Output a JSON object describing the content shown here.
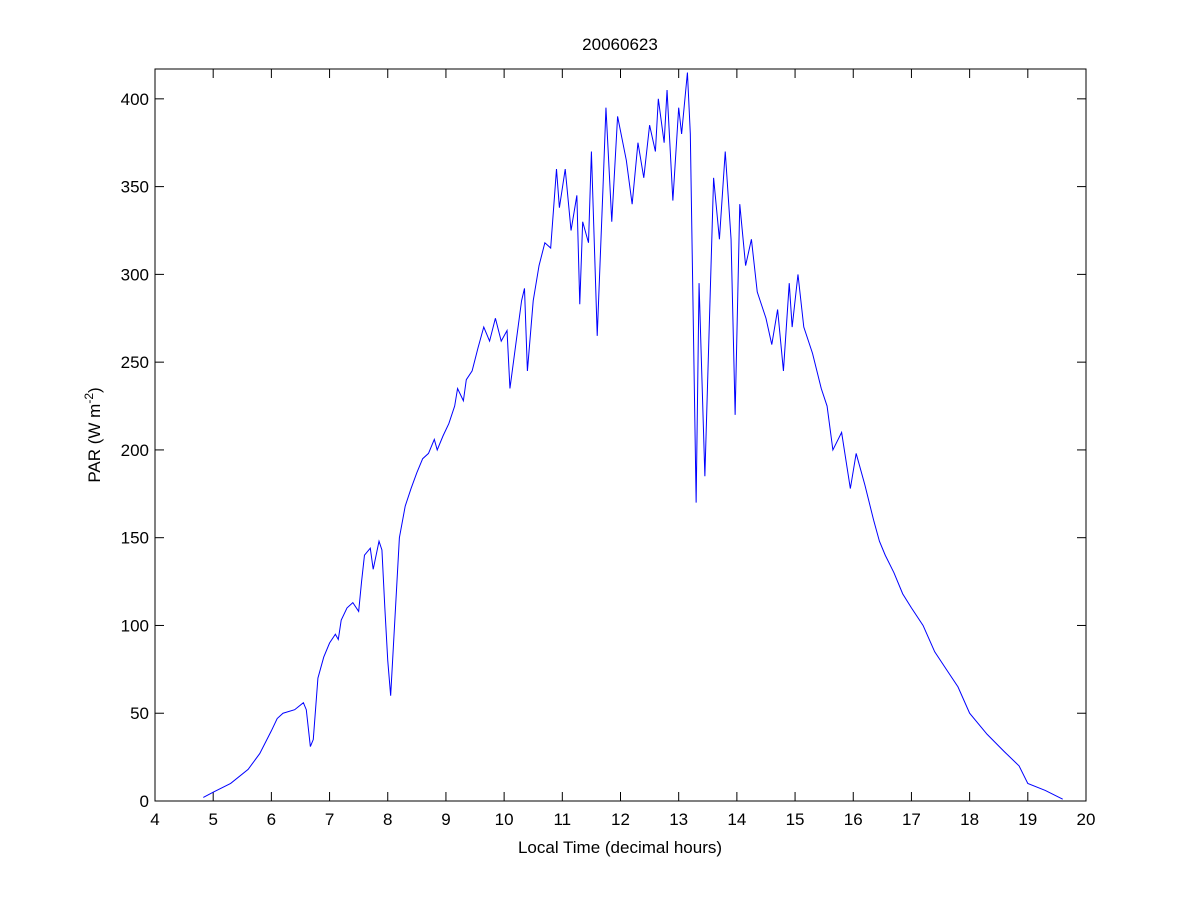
{
  "chart_data": {
    "type": "line",
    "title": "20060623",
    "xlabel": "Local Time (decimal hours)",
    "ylabel": [
      "PAR (W m",
      "-2",
      ")"
    ],
    "xlim": [
      4,
      20
    ],
    "ylim": [
      0,
      417
    ],
    "xticks": [
      4,
      5,
      6,
      7,
      8,
      9,
      10,
      11,
      12,
      13,
      14,
      15,
      16,
      17,
      18,
      19,
      20
    ],
    "yticks": [
      0,
      50,
      100,
      150,
      200,
      250,
      300,
      350,
      400
    ],
    "grid": false,
    "series": [
      {
        "color": "#0000ff",
        "x": [
          4.83,
          5.0,
          5.3,
          5.6,
          5.8,
          6.0,
          6.1,
          6.2,
          6.4,
          6.55,
          6.6,
          6.67,
          6.72,
          6.8,
          6.9,
          7.0,
          7.1,
          7.15,
          7.2,
          7.3,
          7.4,
          7.5,
          7.55,
          7.6,
          7.7,
          7.75,
          7.8,
          7.85,
          7.9,
          7.95,
          8.0,
          8.05,
          8.1,
          8.2,
          8.3,
          8.4,
          8.5,
          8.6,
          8.7,
          8.8,
          8.85,
          8.95,
          9.05,
          9.15,
          9.2,
          9.3,
          9.35,
          9.45,
          9.55,
          9.65,
          9.75,
          9.85,
          9.95,
          10.05,
          10.1,
          10.2,
          10.3,
          10.35,
          10.4,
          10.5,
          10.6,
          10.7,
          10.8,
          10.9,
          10.95,
          11.05,
          11.15,
          11.25,
          11.3,
          11.35,
          11.45,
          11.5,
          11.6,
          11.7,
          11.75,
          11.85,
          11.95,
          12.1,
          12.2,
          12.3,
          12.4,
          12.5,
          12.6,
          12.65,
          12.75,
          12.8,
          12.9,
          13.0,
          13.05,
          13.15,
          13.2,
          13.3,
          13.35,
          13.45,
          13.6,
          13.7,
          13.8,
          13.9,
          13.97,
          14.05,
          14.15,
          14.25,
          14.35,
          14.5,
          14.6,
          14.7,
          14.8,
          14.9,
          14.95,
          15.05,
          15.15,
          15.3,
          15.45,
          15.55,
          15.65,
          15.8,
          15.95,
          16.05,
          16.2,
          16.35,
          16.45,
          16.55,
          16.7,
          16.85,
          17.0,
          17.2,
          17.4,
          17.6,
          17.8,
          18.0,
          18.3,
          18.6,
          18.85,
          19.0,
          19.3,
          19.6
        ],
        "values": [
          2,
          5,
          10,
          18,
          27,
          40,
          47,
          50,
          52,
          56,
          52,
          31,
          35,
          70,
          82,
          90,
          95,
          92,
          103,
          110,
          113,
          108,
          125,
          140,
          144,
          132,
          140,
          148,
          143,
          110,
          80,
          60,
          90,
          150,
          168,
          178,
          187,
          195,
          198,
          206,
          200,
          208,
          215,
          225,
          235,
          228,
          240,
          245,
          258,
          270,
          262,
          275,
          262,
          268,
          235,
          260,
          285,
          292,
          245,
          285,
          305,
          318,
          315,
          360,
          338,
          360,
          325,
          345,
          283,
          330,
          318,
          370,
          265,
          350,
          395,
          330,
          390,
          365,
          340,
          375,
          355,
          385,
          370,
          400,
          375,
          405,
          342,
          395,
          380,
          415,
          380,
          170,
          295,
          185,
          355,
          320,
          370,
          320,
          220,
          340,
          305,
          320,
          290,
          275,
          260,
          280,
          245,
          295,
          270,
          300,
          270,
          255,
          235,
          225,
          200,
          210,
          178,
          198,
          180,
          160,
          148,
          140,
          130,
          118,
          110,
          100,
          85,
          75,
          65,
          50,
          38,
          28,
          20,
          10,
          6,
          1
        ]
      }
    ]
  }
}
